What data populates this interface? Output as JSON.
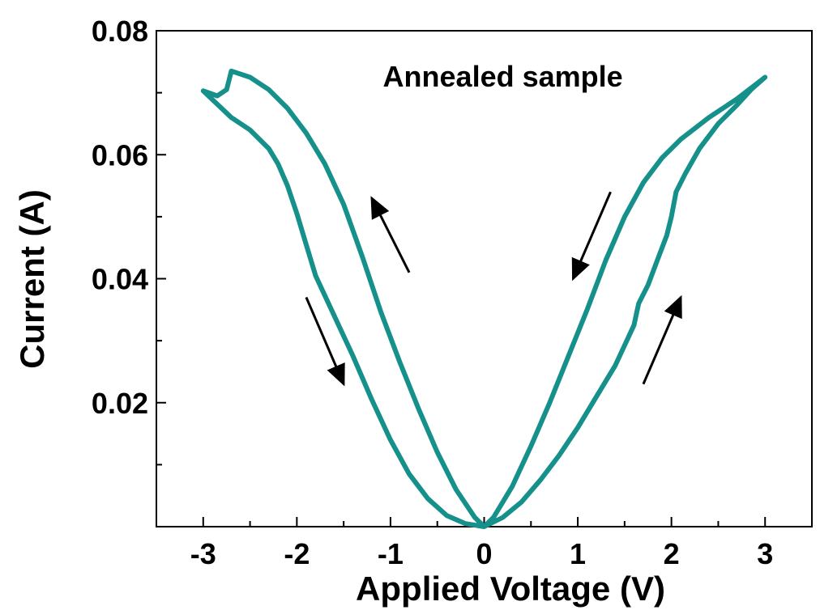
{
  "chart_data": {
    "type": "line",
    "title": "",
    "xlabel": "Applied Voltage (V)",
    "ylabel": "Current (A)",
    "xlim": [
      -3.5,
      3.5
    ],
    "ylim": [
      0,
      0.08
    ],
    "x_ticks": [
      -3,
      -2,
      -1,
      0,
      1,
      2,
      3
    ],
    "x_tick_labels": [
      "-3",
      "-2",
      "-1",
      "0",
      "1",
      "2",
      "3"
    ],
    "y_ticks": [
      0.02,
      0.04,
      0.06,
      0.08
    ],
    "y_tick_labels": [
      "0.02",
      "0.04",
      "0.06",
      "0.08"
    ],
    "grid": false,
    "legend": "none",
    "color": "#16908a",
    "annotations": [
      {
        "text": "Annealed sample",
        "x": 0.2,
        "y": 0.071
      }
    ],
    "arrows": [
      {
        "from": [
          -0.8,
          0.041
        ],
        "to": [
          -1.2,
          0.053
        ]
      },
      {
        "from": [
          -1.9,
          0.037
        ],
        "to": [
          -1.5,
          0.023
        ]
      },
      {
        "from": [
          1.35,
          0.054
        ],
        "to": [
          0.95,
          0.04
        ]
      },
      {
        "from": [
          1.7,
          0.023
        ],
        "to": [
          2.1,
          0.037
        ]
      }
    ],
    "series": [
      {
        "points": [
          [
            0,
            0.0
          ],
          [
            0.2,
            0.0015
          ],
          [
            0.4,
            0.004
          ],
          [
            0.6,
            0.0075
          ],
          [
            0.8,
            0.0115
          ],
          [
            1.0,
            0.016
          ],
          [
            1.2,
            0.021
          ],
          [
            1.4,
            0.026
          ],
          [
            1.6,
            0.0325
          ],
          [
            1.65,
            0.036
          ],
          [
            1.75,
            0.039
          ],
          [
            1.85,
            0.043
          ],
          [
            1.95,
            0.047
          ],
          [
            2.0,
            0.05
          ],
          [
            2.05,
            0.054
          ],
          [
            2.15,
            0.057
          ],
          [
            2.3,
            0.061
          ],
          [
            2.5,
            0.065
          ],
          [
            2.7,
            0.068
          ],
          [
            2.85,
            0.0705
          ],
          [
            3.0,
            0.0725
          ],
          [
            2.7,
            0.069
          ],
          [
            2.4,
            0.066
          ],
          [
            2.1,
            0.0625
          ],
          [
            1.9,
            0.0595
          ],
          [
            1.7,
            0.0555
          ],
          [
            1.5,
            0.05
          ],
          [
            1.3,
            0.043
          ],
          [
            1.1,
            0.035
          ],
          [
            0.9,
            0.0275
          ],
          [
            0.7,
            0.02
          ],
          [
            0.5,
            0.013
          ],
          [
            0.3,
            0.0065
          ],
          [
            0.1,
            0.0015
          ],
          [
            0,
            0.0
          ],
          [
            -0.1,
            0.0015
          ],
          [
            -0.3,
            0.006
          ],
          [
            -0.5,
            0.012
          ],
          [
            -0.7,
            0.019
          ],
          [
            -0.9,
            0.0265
          ],
          [
            -1.1,
            0.0345
          ],
          [
            -1.3,
            0.0435
          ],
          [
            -1.5,
            0.052
          ],
          [
            -1.7,
            0.0585
          ],
          [
            -1.9,
            0.0635
          ],
          [
            -2.1,
            0.0675
          ],
          [
            -2.3,
            0.0705
          ],
          [
            -2.5,
            0.0725
          ],
          [
            -2.7,
            0.0735
          ],
          [
            -2.75,
            0.0705
          ],
          [
            -2.85,
            0.0695
          ],
          [
            -3.0,
            0.0703
          ],
          [
            -2.7,
            0.066
          ],
          [
            -2.5,
            0.064
          ],
          [
            -2.3,
            0.061
          ],
          [
            -2.2,
            0.0585
          ],
          [
            -2.1,
            0.055
          ],
          [
            -2.0,
            0.0505
          ],
          [
            -1.9,
            0.0455
          ],
          [
            -1.8,
            0.0405
          ],
          [
            -1.6,
            0.034
          ],
          [
            -1.4,
            0.0275
          ],
          [
            -1.2,
            0.0205
          ],
          [
            -1.0,
            0.014
          ],
          [
            -0.8,
            0.0085
          ],
          [
            -0.6,
            0.0045
          ],
          [
            -0.4,
            0.0018
          ],
          [
            -0.2,
            0.0005
          ],
          [
            0,
            0.0
          ]
        ]
      }
    ]
  }
}
